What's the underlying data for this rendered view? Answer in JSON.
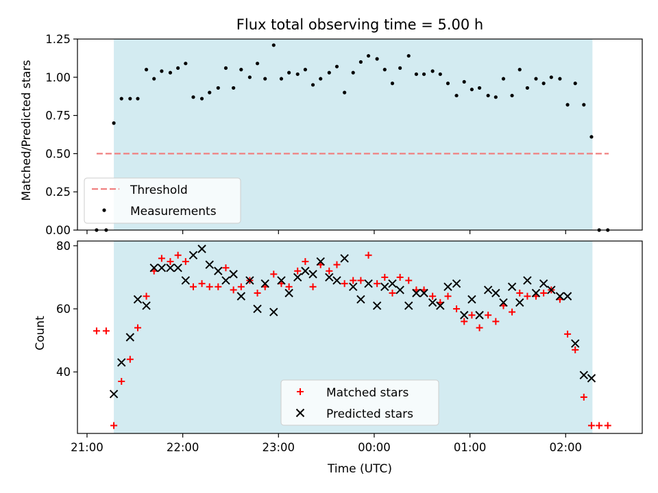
{
  "title": "Flux total observing time = 5.00 h",
  "colors": {
    "shade": "#d3ebf1",
    "threshold": "#f08080",
    "measurement": "#000000",
    "matched": "#ff0000",
    "predicted": "#000000"
  },
  "chart_data": [
    {
      "type": "scatter",
      "ylabel": "Matched/Predicted stars",
      "xlim": [
        -0.1,
        5.8
      ],
      "ylim": [
        0,
        1.25
      ],
      "y_ticks": [
        0,
        0.25,
        0.5,
        0.75,
        1.0,
        1.25
      ],
      "y_tick_labels": [
        "0.00",
        "0.25",
        "0.50",
        "0.75",
        "1.00",
        "1.25"
      ],
      "shaded_x_range": [
        0.28,
        5.28
      ],
      "threshold": {
        "label": "Threshold",
        "value": 0.5,
        "x_range": [
          0.1,
          5.45
        ]
      },
      "legend": {
        "placement": "lower-left",
        "entries": [
          "Threshold",
          "Measurements"
        ]
      },
      "series": [
        {
          "name": "Measurements",
          "x": [
            0.1,
            0.2,
            0.28,
            0.36,
            0.45,
            0.53,
            0.62,
            0.7,
            0.78,
            0.87,
            0.95,
            1.03,
            1.11,
            1.2,
            1.28,
            1.37,
            1.45,
            1.53,
            1.61,
            1.7,
            1.78,
            1.86,
            1.95,
            2.03,
            2.11,
            2.2,
            2.28,
            2.36,
            2.44,
            2.53,
            2.61,
            2.69,
            2.78,
            2.86,
            2.94,
            3.03,
            3.11,
            3.19,
            3.27,
            3.36,
            3.44,
            3.52,
            3.61,
            3.69,
            3.77,
            3.86,
            3.94,
            4.02,
            4.1,
            4.19,
            4.27,
            4.35,
            4.44,
            4.52,
            4.6,
            4.69,
            4.77,
            4.85,
            4.94,
            5.02,
            5.1,
            5.19,
            5.27,
            5.35,
            5.44
          ],
          "y": [
            0.0,
            0.0,
            0.7,
            0.86,
            0.86,
            0.86,
            1.05,
            0.99,
            1.04,
            1.03,
            1.06,
            1.09,
            0.87,
            0.86,
            0.9,
            0.93,
            1.06,
            0.93,
            1.05,
            1.0,
            1.09,
            0.99,
            1.21,
            0.99,
            1.03,
            1.02,
            1.05,
            0.95,
            0.99,
            1.03,
            1.07,
            0.9,
            1.03,
            1.1,
            1.14,
            1.12,
            1.05,
            0.96,
            1.06,
            1.14,
            1.02,
            1.02,
            1.04,
            1.02,
            0.96,
            0.88,
            0.97,
            0.92,
            0.93,
            0.88,
            0.87,
            0.99,
            0.88,
            1.05,
            0.93,
            0.99,
            0.96,
            1.0,
            0.99,
            0.82,
            0.96,
            0.82,
            0.61,
            0.0,
            0.0
          ]
        }
      ]
    },
    {
      "type": "scatter",
      "ylabel": "Count",
      "xlabel": "Time (UTC)",
      "xlim": [
        -0.1,
        5.8
      ],
      "ylim": [
        20.5,
        81.5
      ],
      "y_ticks": [
        40,
        60,
        80
      ],
      "y_tick_labels": [
        "40",
        "60",
        "80"
      ],
      "x_ticks": [
        0,
        1,
        2,
        3,
        4,
        5
      ],
      "x_tick_labels": [
        "21:00",
        "22:00",
        "23:00",
        "00:00",
        "01:00",
        "02:00"
      ],
      "shaded_x_range": [
        0.28,
        5.28
      ],
      "legend": {
        "placement": "lower-center",
        "entries": [
          "Matched stars",
          "Predicted stars"
        ]
      },
      "series": [
        {
          "name": "Matched stars",
          "marker": "plus",
          "x": [
            0.1,
            0.2,
            0.28,
            0.36,
            0.45,
            0.53,
            0.62,
            0.7,
            0.78,
            0.87,
            0.95,
            1.03,
            1.11,
            1.2,
            1.28,
            1.37,
            1.45,
            1.53,
            1.61,
            1.7,
            1.78,
            1.86,
            1.95,
            2.03,
            2.11,
            2.2,
            2.28,
            2.36,
            2.44,
            2.53,
            2.61,
            2.69,
            2.78,
            2.86,
            2.94,
            3.03,
            3.11,
            3.19,
            3.27,
            3.36,
            3.44,
            3.52,
            3.61,
            3.69,
            3.77,
            3.86,
            3.94,
            4.02,
            4.1,
            4.19,
            4.27,
            4.35,
            4.44,
            4.52,
            4.6,
            4.69,
            4.77,
            4.85,
            4.94,
            5.02,
            5.1,
            5.19,
            5.27,
            5.35,
            5.44
          ],
          "y": [
            53,
            53,
            23,
            37,
            44,
            54,
            64,
            72,
            76,
            75,
            77,
            75,
            67,
            68,
            67,
            67,
            73,
            66,
            67,
            69,
            65,
            67,
            71,
            68,
            67,
            72,
            75,
            67,
            74,
            72,
            74,
            68,
            69,
            69,
            77,
            68,
            70,
            65,
            70,
            69,
            66,
            66,
            64,
            62,
            64,
            60,
            56,
            58,
            54,
            58,
            56,
            61,
            59,
            65,
            64,
            64,
            65,
            66,
            63,
            52,
            47,
            32,
            23,
            23,
            23
          ]
        },
        {
          "name": "Predicted stars",
          "marker": "x",
          "x": [
            0.28,
            0.36,
            0.45,
            0.53,
            0.62,
            0.7,
            0.78,
            0.87,
            0.95,
            1.03,
            1.11,
            1.2,
            1.28,
            1.37,
            1.45,
            1.53,
            1.61,
            1.7,
            1.78,
            1.86,
            1.95,
            2.03,
            2.11,
            2.2,
            2.28,
            2.36,
            2.44,
            2.53,
            2.61,
            2.69,
            2.78,
            2.86,
            2.94,
            3.03,
            3.11,
            3.19,
            3.27,
            3.36,
            3.44,
            3.52,
            3.61,
            3.69,
            3.77,
            3.86,
            3.94,
            4.02,
            4.1,
            4.19,
            4.27,
            4.35,
            4.44,
            4.52,
            4.6,
            4.69,
            4.77,
            4.85,
            4.94,
            5.02,
            5.1,
            5.19,
            5.27
          ],
          "y": [
            33,
            43,
            51,
            63,
            61,
            73,
            73,
            73,
            73,
            69,
            77,
            79,
            74,
            72,
            69,
            71,
            64,
            69,
            60,
            68,
            59,
            69,
            65,
            70,
            72,
            71,
            75,
            70,
            69,
            76,
            67,
            63,
            68,
            61,
            67,
            68,
            66,
            61,
            65,
            65,
            62,
            61,
            67,
            68,
            58,
            63,
            58,
            66,
            65,
            62,
            67,
            62,
            69,
            65,
            68,
            66,
            64,
            64,
            49,
            39,
            38
          ]
        }
      ]
    }
  ]
}
